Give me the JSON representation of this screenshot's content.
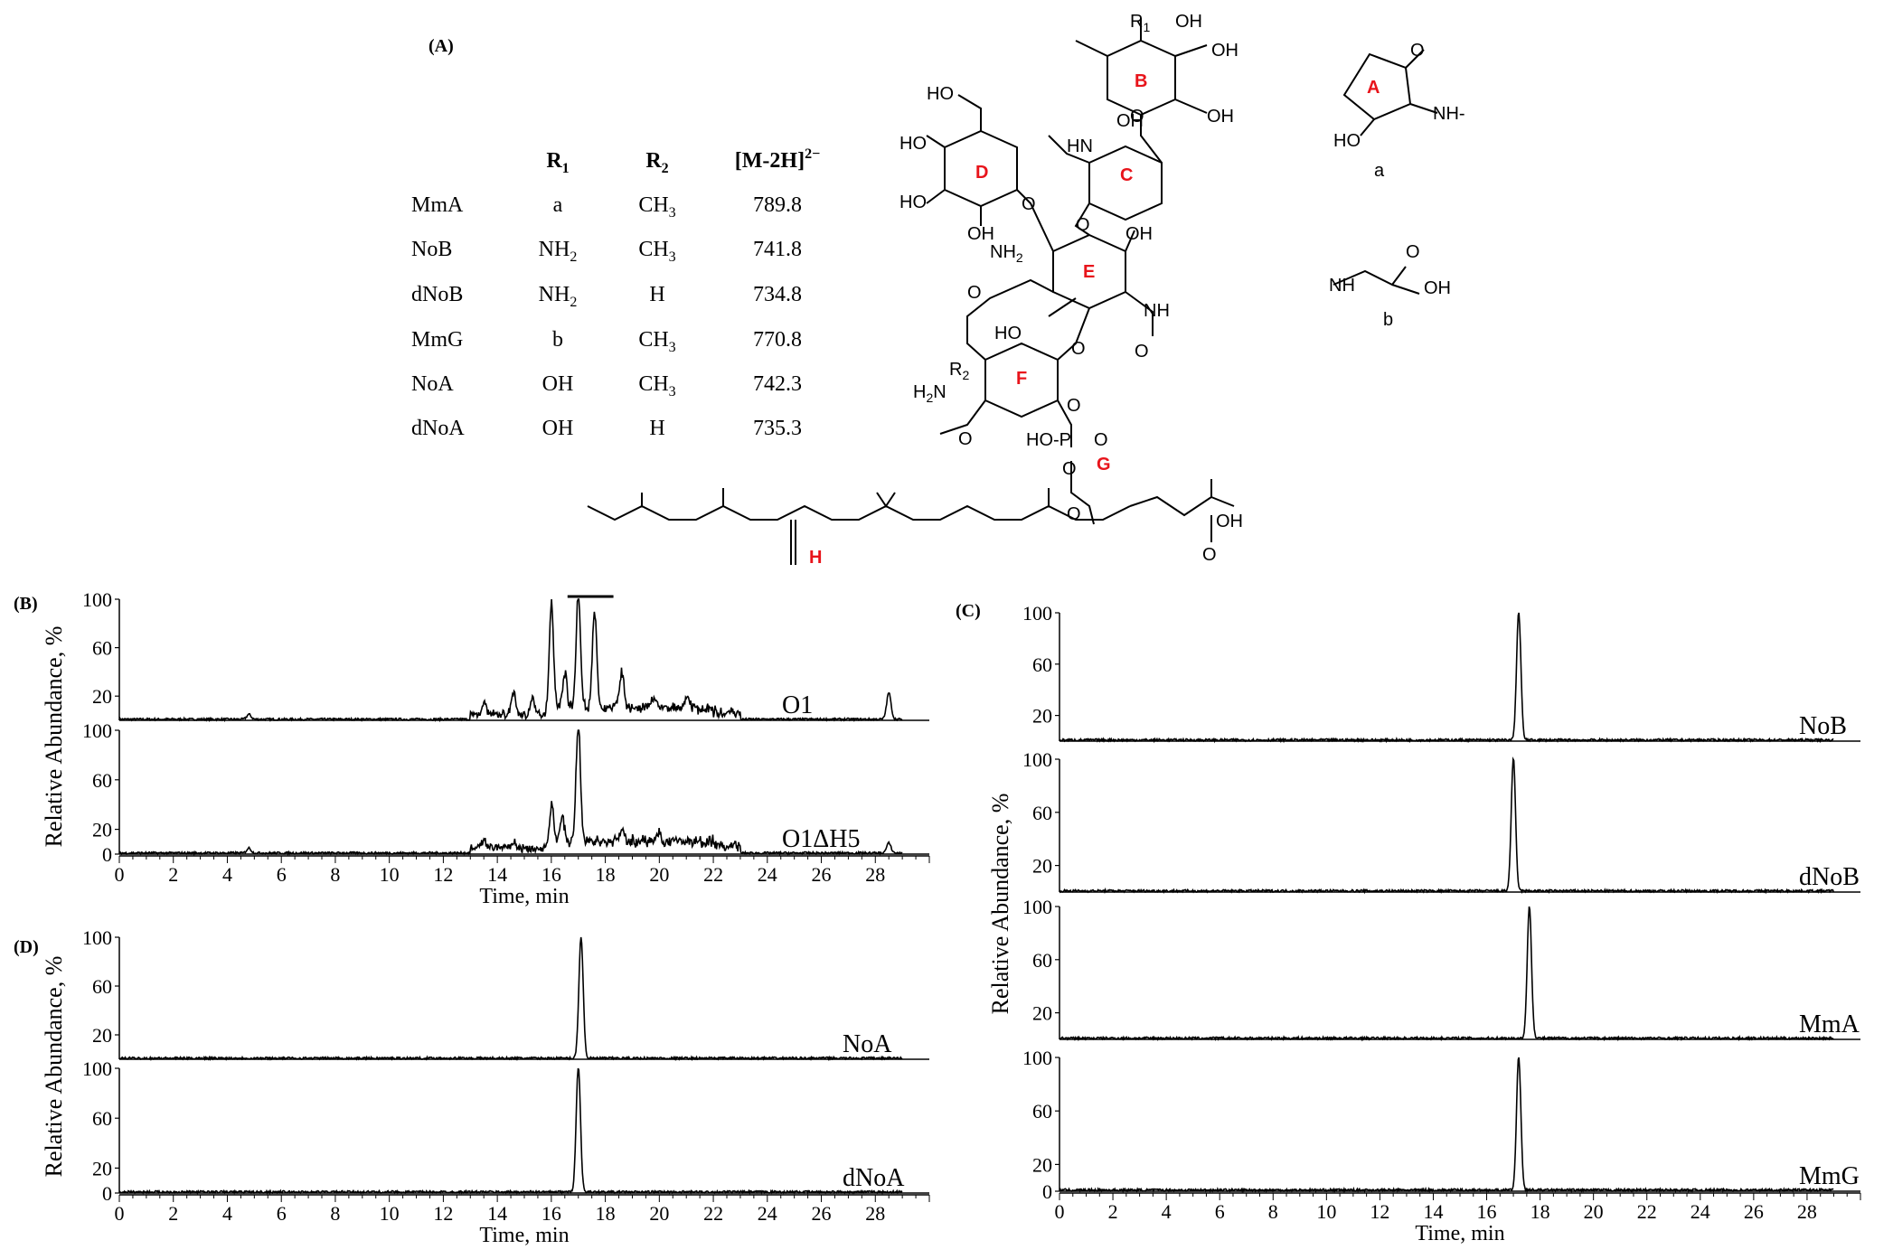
{
  "panel_labels": {
    "A": "(A)",
    "B": "(B)",
    "C": "(C)",
    "D": "(D)"
  },
  "table": {
    "headers": [
      "",
      "R1",
      "R2",
      "[M-2H]2−"
    ],
    "rows": [
      [
        "MmA",
        "a",
        "CH3",
        "789.8"
      ],
      [
        "NoB",
        "NH2",
        "CH3",
        "741.8"
      ],
      [
        "dNoB",
        "NH2",
        "H",
        "734.8"
      ],
      [
        "MmG",
        "b",
        "CH3",
        "770.8"
      ],
      [
        "NoA",
        "OH",
        "CH3",
        "742.3"
      ],
      [
        "dNoA",
        "OH",
        "H",
        "735.3"
      ]
    ]
  },
  "structure": {
    "ring_labels": [
      "A",
      "B",
      "C",
      "D",
      "E",
      "F",
      "G",
      "H"
    ],
    "groups": [
      "R1",
      "R2",
      "OH",
      "NH",
      "NH2",
      "H2N",
      "HO",
      "HO-P",
      "O",
      "a",
      "b"
    ],
    "ring_color": "#e8141b"
  },
  "chart_data": [
    {
      "panel": "(B)",
      "type": "line",
      "xlabel": "Time, min",
      "ylabel": "Relative Abundance, %",
      "xlim": [
        0,
        30
      ],
      "xticks": [
        0,
        2,
        4,
        6,
        8,
        10,
        12,
        14,
        16,
        18,
        20,
        22,
        24,
        26,
        28
      ],
      "yticks": [
        0,
        20,
        60,
        100
      ],
      "annotation": "horizontal bar over 16.6–17.9 min",
      "series": [
        {
          "name": "O1",
          "peaks": [
            [
              4.8,
              4
            ],
            [
              13.5,
              10
            ],
            [
              14.6,
              18
            ],
            [
              15.3,
              12
            ],
            [
              16.0,
              90
            ],
            [
              16.5,
              30
            ],
            [
              17.0,
              97
            ],
            [
              17.6,
              80
            ],
            [
              18.6,
              30
            ],
            [
              19.8,
              10
            ],
            [
              21.0,
              8
            ],
            [
              28.5,
              22
            ]
          ]
        },
        {
          "name": "O1ΔH5",
          "peaks": [
            [
              4.8,
              4
            ],
            [
              13.5,
              5
            ],
            [
              14.6,
              6
            ],
            [
              16.0,
              30
            ],
            [
              16.4,
              18
            ],
            [
              17.0,
              96
            ],
            [
              18.6,
              10
            ],
            [
              20.0,
              7
            ],
            [
              28.5,
              8
            ]
          ]
        }
      ]
    },
    {
      "panel": "(C)",
      "type": "line",
      "xlabel": "Time, min",
      "ylabel": "Relative Abundance, %",
      "xlim": [
        0,
        30
      ],
      "xticks": [
        0,
        2,
        4,
        6,
        8,
        10,
        12,
        14,
        16,
        18,
        20,
        22,
        24,
        26,
        28
      ],
      "yticks": [
        0,
        20,
        60,
        100
      ],
      "series": [
        {
          "name": "NoB",
          "peaks": [
            [
              17.2,
              100
            ]
          ]
        },
        {
          "name": "dNoB",
          "peaks": [
            [
              17.0,
              100
            ]
          ]
        },
        {
          "name": "MmA",
          "peaks": [
            [
              17.6,
              100
            ]
          ]
        },
        {
          "name": "MmG",
          "peaks": [
            [
              17.2,
              100
            ]
          ]
        }
      ]
    },
    {
      "panel": "(D)",
      "type": "line",
      "xlabel": "Time, min",
      "ylabel": "Relative Abundance, %",
      "xlim": [
        0,
        30
      ],
      "xticks": [
        0,
        2,
        4,
        6,
        8,
        10,
        12,
        14,
        16,
        18,
        20,
        22,
        24,
        26,
        28
      ],
      "yticks": [
        0,
        20,
        60,
        100
      ],
      "series": [
        {
          "name": "NoA",
          "peaks": [
            [
              17.1,
              100
            ]
          ]
        },
        {
          "name": "dNoA",
          "peaks": [
            [
              17.0,
              100
            ]
          ]
        }
      ]
    }
  ]
}
